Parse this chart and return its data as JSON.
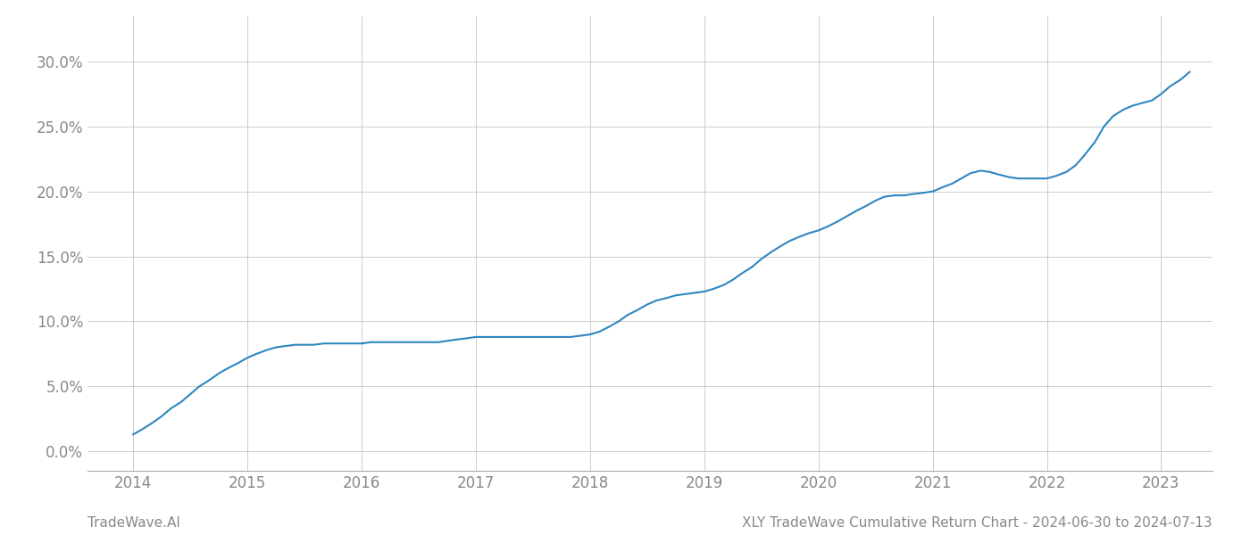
{
  "x_data": [
    2014.0,
    2014.08,
    2014.17,
    2014.25,
    2014.33,
    2014.42,
    2014.5,
    2014.58,
    2014.67,
    2014.75,
    2014.83,
    2014.92,
    2015.0,
    2015.08,
    2015.17,
    2015.25,
    2015.33,
    2015.42,
    2015.5,
    2015.58,
    2015.67,
    2015.75,
    2015.83,
    2015.92,
    2016.0,
    2016.08,
    2016.17,
    2016.25,
    2016.33,
    2016.42,
    2016.5,
    2016.58,
    2016.67,
    2016.75,
    2016.83,
    2016.92,
    2017.0,
    2017.08,
    2017.17,
    2017.25,
    2017.33,
    2017.42,
    2017.5,
    2017.58,
    2017.67,
    2017.75,
    2017.83,
    2017.92,
    2018.0,
    2018.08,
    2018.17,
    2018.25,
    2018.33,
    2018.42,
    2018.5,
    2018.58,
    2018.67,
    2018.75,
    2018.83,
    2018.92,
    2019.0,
    2019.08,
    2019.17,
    2019.25,
    2019.33,
    2019.42,
    2019.5,
    2019.58,
    2019.67,
    2019.75,
    2019.83,
    2019.92,
    2020.0,
    2020.08,
    2020.17,
    2020.25,
    2020.33,
    2020.42,
    2020.5,
    2020.58,
    2020.67,
    2020.75,
    2020.83,
    2020.92,
    2021.0,
    2021.08,
    2021.17,
    2021.25,
    2021.33,
    2021.42,
    2021.5,
    2021.58,
    2021.67,
    2021.75,
    2021.83,
    2021.92,
    2022.0,
    2022.08,
    2022.17,
    2022.25,
    2022.33,
    2022.42,
    2022.5,
    2022.58,
    2022.67,
    2022.75,
    2022.83,
    2022.92,
    2023.0,
    2023.08,
    2023.17,
    2023.25
  ],
  "y_data": [
    0.013,
    0.017,
    0.022,
    0.027,
    0.033,
    0.038,
    0.044,
    0.05,
    0.055,
    0.06,
    0.064,
    0.068,
    0.072,
    0.075,
    0.078,
    0.08,
    0.081,
    0.082,
    0.082,
    0.082,
    0.083,
    0.083,
    0.083,
    0.083,
    0.083,
    0.084,
    0.084,
    0.084,
    0.084,
    0.084,
    0.084,
    0.084,
    0.084,
    0.085,
    0.086,
    0.087,
    0.088,
    0.088,
    0.088,
    0.088,
    0.088,
    0.088,
    0.088,
    0.088,
    0.088,
    0.088,
    0.088,
    0.089,
    0.09,
    0.092,
    0.096,
    0.1,
    0.105,
    0.109,
    0.113,
    0.116,
    0.118,
    0.12,
    0.121,
    0.122,
    0.123,
    0.125,
    0.128,
    0.132,
    0.137,
    0.142,
    0.148,
    0.153,
    0.158,
    0.162,
    0.165,
    0.168,
    0.17,
    0.173,
    0.177,
    0.181,
    0.185,
    0.189,
    0.193,
    0.196,
    0.197,
    0.197,
    0.198,
    0.199,
    0.2,
    0.203,
    0.206,
    0.21,
    0.214,
    0.216,
    0.215,
    0.213,
    0.211,
    0.21,
    0.21,
    0.21,
    0.21,
    0.212,
    0.215,
    0.22,
    0.228,
    0.238,
    0.25,
    0.258,
    0.263,
    0.266,
    0.268,
    0.27,
    0.275,
    0.281,
    0.286,
    0.292
  ],
  "line_color": "#2e86c1",
  "line_width": 1.5,
  "background_color": "#ffffff",
  "grid_color": "#cccccc",
  "tick_label_color": "#888888",
  "footer_left": "TradeWave.AI",
  "footer_right": "XLY TradeWave Cumulative Return Chart - 2024-06-30 to 2024-07-13",
  "footer_color": "#888888",
  "footer_fontsize": 11,
  "ytick_labels": [
    "0.0%",
    "5.0%",
    "10.0%",
    "15.0%",
    "20.0%",
    "25.0%",
    "30.0%"
  ],
  "ytick_values": [
    0.0,
    0.05,
    0.1,
    0.15,
    0.2,
    0.25,
    0.3
  ],
  "xlim": [
    2013.6,
    2023.45
  ],
  "ylim": [
    -0.015,
    0.335
  ],
  "xtick_years": [
    2014,
    2015,
    2016,
    2017,
    2018,
    2019,
    2020,
    2021,
    2022,
    2023
  ]
}
